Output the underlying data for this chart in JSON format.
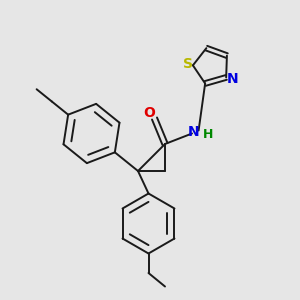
{
  "bg_color": "#e6e6e6",
  "bond_color": "#1a1a1a",
  "colors": {
    "O": "#e00000",
    "N": "#0000e0",
    "S": "#b8b800",
    "H": "#008800",
    "C": "#1a1a1a"
  },
  "figsize": [
    3.0,
    3.0
  ],
  "dpi": 100
}
